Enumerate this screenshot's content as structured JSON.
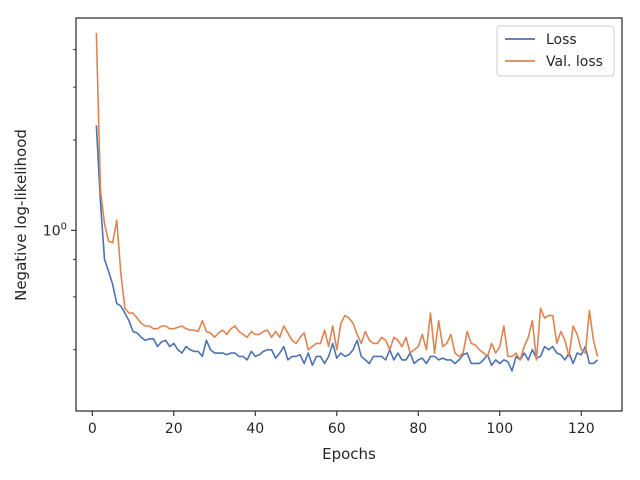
{
  "chart_data": {
    "type": "line",
    "xlabel": "Epochs",
    "ylabel": "Negative log-likelihood",
    "yscale": "log",
    "xlim": [
      -4,
      130
    ],
    "ylim": [
      0.25,
      5.1
    ],
    "x_ticks": [
      0,
      20,
      40,
      60,
      80,
      100,
      120
    ],
    "y_major_ticks": [
      {
        "value": 1.0,
        "label": "10^0"
      }
    ],
    "y_minor_ticks": [
      0.4,
      0.6,
      0.8,
      2.0,
      3.0,
      4.0
    ],
    "legend_position": "top-right",
    "grid": false,
    "series": [
      {
        "name": "Loss",
        "color": "#4c72b0",
        "values": [
          2.24,
          1.24,
          0.8,
          0.73,
          0.66,
          0.57,
          0.56,
          0.53,
          0.5,
          0.46,
          0.455,
          0.44,
          0.43,
          0.435,
          0.435,
          0.41,
          0.425,
          0.43,
          0.41,
          0.42,
          0.4,
          0.39,
          0.41,
          0.4,
          0.395,
          0.395,
          0.38,
          0.43,
          0.4,
          0.39,
          0.39,
          0.39,
          0.385,
          0.39,
          0.39,
          0.38,
          0.38,
          0.37,
          0.395,
          0.38,
          0.385,
          0.395,
          0.4,
          0.4,
          0.375,
          0.39,
          0.41,
          0.37,
          0.38,
          0.38,
          0.385,
          0.36,
          0.39,
          0.355,
          0.38,
          0.38,
          0.36,
          0.38,
          0.42,
          0.375,
          0.39,
          0.38,
          0.385,
          0.4,
          0.43,
          0.38,
          0.37,
          0.36,
          0.38,
          0.38,
          0.38,
          0.37,
          0.4,
          0.37,
          0.39,
          0.37,
          0.37,
          0.39,
          0.36,
          0.37,
          0.375,
          0.36,
          0.38,
          0.38,
          0.37,
          0.375,
          0.37,
          0.37,
          0.36,
          0.37,
          0.385,
          0.39,
          0.36,
          0.36,
          0.36,
          0.37,
          0.385,
          0.355,
          0.37,
          0.36,
          0.37,
          0.365,
          0.34,
          0.38,
          0.37,
          0.39,
          0.37,
          0.4,
          0.375,
          0.38,
          0.41,
          0.4,
          0.41,
          0.39,
          0.385,
          0.37,
          0.39,
          0.36,
          0.39,
          0.385,
          0.41,
          0.36,
          0.36,
          0.37
        ]
      },
      {
        "name": "Val. loss",
        "color": "#dd8452",
        "values": [
          4.55,
          1.36,
          1.05,
          0.92,
          0.91,
          1.08,
          0.72,
          0.55,
          0.53,
          0.53,
          0.51,
          0.49,
          0.48,
          0.48,
          0.47,
          0.47,
          0.48,
          0.48,
          0.47,
          0.47,
          0.475,
          0.48,
          0.47,
          0.465,
          0.465,
          0.46,
          0.5,
          0.46,
          0.455,
          0.44,
          0.455,
          0.465,
          0.45,
          0.47,
          0.48,
          0.46,
          0.45,
          0.44,
          0.46,
          0.45,
          0.45,
          0.46,
          0.465,
          0.44,
          0.46,
          0.44,
          0.48,
          0.455,
          0.43,
          0.42,
          0.44,
          0.455,
          0.4,
          0.41,
          0.42,
          0.42,
          0.465,
          0.41,
          0.48,
          0.4,
          0.49,
          0.52,
          0.51,
          0.49,
          0.45,
          0.42,
          0.46,
          0.43,
          0.42,
          0.42,
          0.44,
          0.43,
          0.4,
          0.44,
          0.43,
          0.41,
          0.44,
          0.39,
          0.4,
          0.41,
          0.45,
          0.4,
          0.53,
          0.39,
          0.5,
          0.41,
          0.42,
          0.45,
          0.39,
          0.38,
          0.39,
          0.46,
          0.42,
          0.415,
          0.4,
          0.39,
          0.38,
          0.42,
          0.39,
          0.41,
          0.48,
          0.38,
          0.38,
          0.39,
          0.37,
          0.41,
          0.44,
          0.5,
          0.37,
          0.55,
          0.51,
          0.52,
          0.52,
          0.42,
          0.46,
          0.43,
          0.38,
          0.48,
          0.45,
          0.4,
          0.39,
          0.54,
          0.43,
          0.38
        ]
      }
    ]
  }
}
